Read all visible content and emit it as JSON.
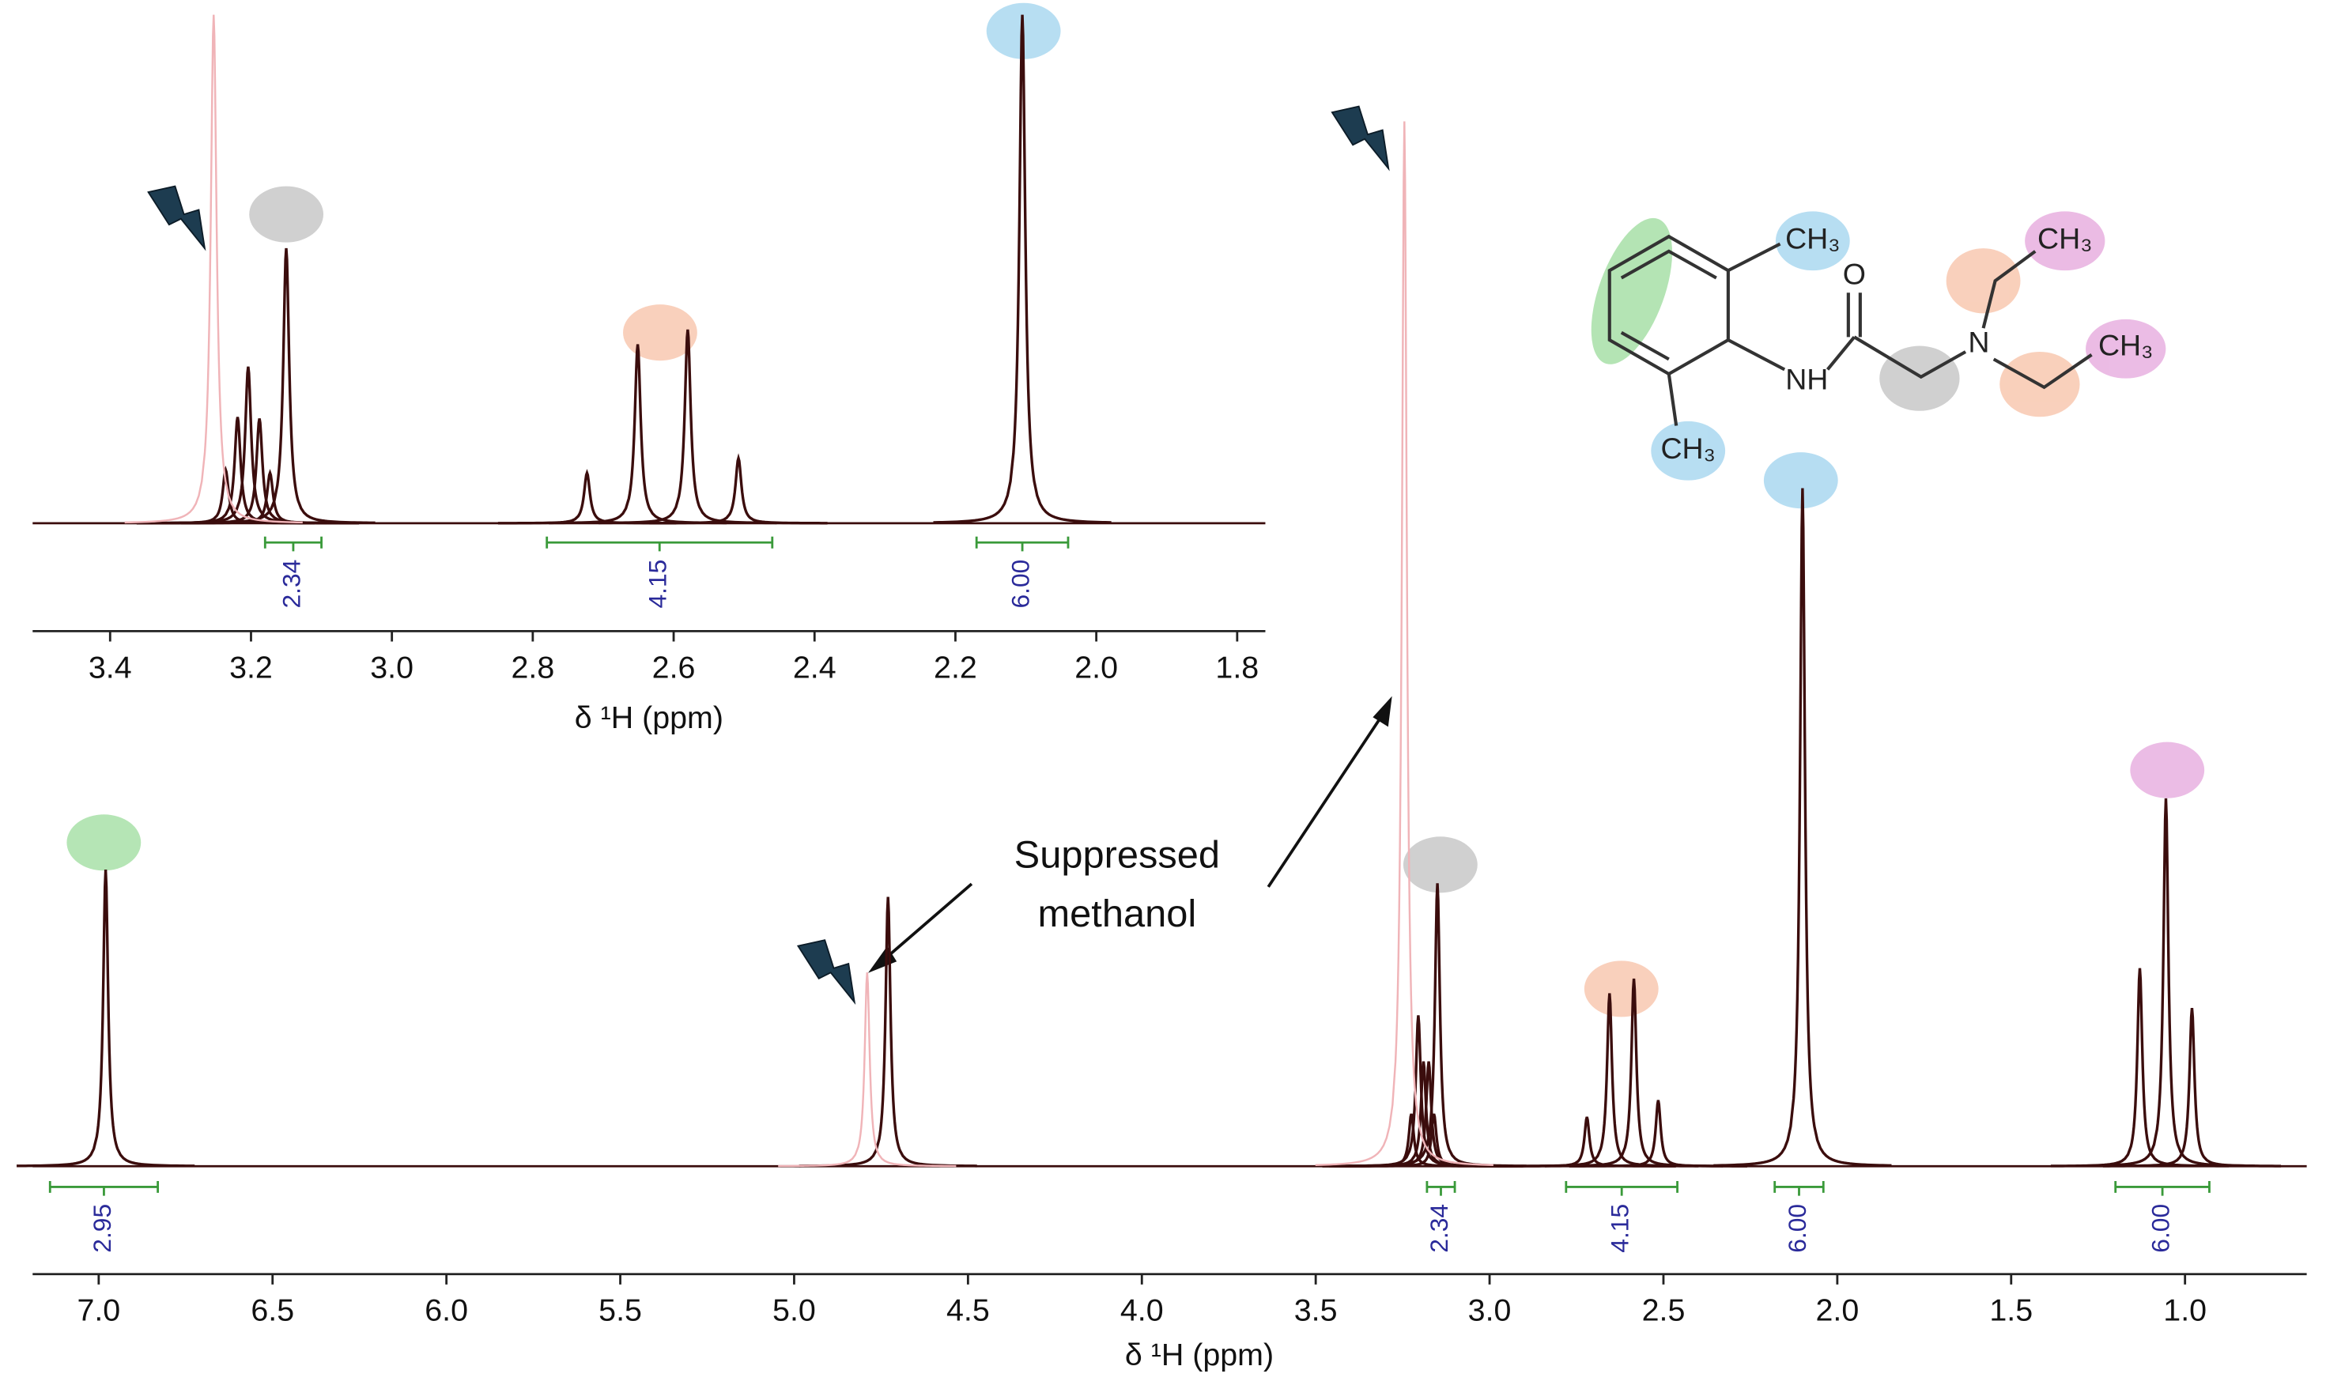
{
  "chart_data": [
    {
      "type": "nmr",
      "x_label": "δ ¹H (ppm)",
      "xlim": [
        7.19,
        0.65
      ],
      "ylim": [
        0,
        100
      ],
      "xticks": [
        {
          "value": 7,
          "label": "7.0"
        },
        6.5,
        {
          "value": 6,
          "label": "6.0"
        },
        5.5,
        {
          "value": 5,
          "label": "5.0"
        },
        4.5,
        {
          "value": 4,
          "label": "4.0"
        },
        3.5,
        {
          "value": 3,
          "label": "3.0"
        },
        2.5,
        {
          "value": 2,
          "label": "2.0"
        },
        1.5,
        {
          "value": 1,
          "label": "1.0"
        }
      ],
      "series": [
        {
          "color": "#3b0d0d",
          "x": [
            6.98,
            4.73,
            3.225,
            3.205,
            3.19,
            3.175,
            3.16,
            3.15,
            2.72,
            2.655,
            2.585,
            2.515,
            2.1,
            1.13,
            1.055,
            0.98
          ],
          "values": [
            28.3,
            25.7,
            5,
            14.4,
            10,
            10,
            5,
            27,
            4.7,
            16.5,
            17.9,
            6.3,
            64.7,
            18.9,
            35.1,
            15.1
          ]
        },
        {
          "color": "#f0b4b8",
          "x": [
            4.79,
            3.245
          ],
          "values": [
            18.5,
            99.7
          ]
        }
      ],
      "integral_ranges": [
        [
          7.14,
          6.83
        ],
        [
          3.18,
          3.1
        ],
        [
          2.78,
          2.46
        ],
        [
          2.18,
          2.04
        ],
        [
          1.2,
          0.93
        ]
      ],
      "integral_values": [
        2.95,
        2.34,
        4.15,
        6,
        6
      ],
      "value_labels": [
        "2.95",
        "2.34",
        "4.15",
        "6.00",
        "6.00"
      ],
      "annotation": [
        "Suppressed",
        "methanol"
      ]
    },
    {
      "type": "nmr",
      "x_label": "δ ¹H (ppm)",
      "xlim": [
        3.51,
        1.76
      ],
      "ylim": [
        0,
        100
      ],
      "xticks": [
        3.4,
        3.2,
        {
          "value": 3,
          "label": "3.0"
        },
        2.8,
        2.6,
        2.4,
        2.2,
        {
          "value": 2,
          "label": "2.0"
        },
        1.8
      ],
      "series": [
        {
          "color": "#3b0d0d",
          "x": [
            3.236,
            3.219,
            3.204,
            3.188,
            3.173,
            3.15,
            2.723,
            2.651,
            2.58,
            2.508,
            2.105
          ],
          "values": [
            10.5,
            20.9,
            30.8,
            20.6,
            9.9,
            54.1,
            9.9,
            35.2,
            38.1,
            12.8,
            100
          ]
        },
        {
          "color": "#f0b4b8",
          "x": [
            3.253
          ],
          "values": [
            100
          ]
        }
      ],
      "integral_ranges": [
        [
          3.18,
          3.1
        ],
        [
          2.78,
          2.46
        ],
        [
          2.17,
          2.04
        ]
      ],
      "integral_values": [
        2.34,
        4.15,
        6
      ],
      "value_labels": [
        "2.34",
        "4.15",
        "6.00"
      ]
    }
  ],
  "molecule": {
    "labels": [
      "CH₃",
      "O",
      "NH",
      "N",
      "CH₃",
      "CH₃",
      "CH₃"
    ]
  }
}
